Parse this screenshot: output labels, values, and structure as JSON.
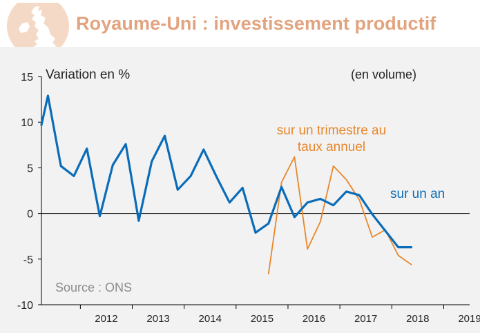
{
  "header": {
    "title": "Royaume-Uni : investissement productif",
    "badge_icon": "uk-map-icon",
    "title_color": "#e2a37f",
    "badge_color": "#f4d9c6"
  },
  "chart_data": {
    "type": "line",
    "ylabel": "Variation en %",
    "note": "(en volume)",
    "source": "Source : ONS",
    "ylim": [
      -10,
      15
    ],
    "yticks": [
      15,
      10,
      5,
      0,
      -5,
      -10
    ],
    "xlim": [
      2011.25,
      2019.5
    ],
    "xticks": [
      "2012",
      "2013",
      "2014",
      "2015",
      "2016",
      "2017",
      "2018",
      "2019"
    ],
    "grid": false,
    "series": [
      {
        "name": "sur un an",
        "color": "#0a6cb8",
        "x": [
          2011.25,
          2011.375,
          2011.625,
          2011.875,
          2012.125,
          2012.375,
          2012.625,
          2012.875,
          2013.125,
          2013.375,
          2013.625,
          2013.875,
          2014.125,
          2014.375,
          2014.625,
          2014.875,
          2015.125,
          2015.375,
          2015.625,
          2015.875,
          2016.125,
          2016.375,
          2016.625,
          2016.875,
          2017.125,
          2017.375,
          2017.625,
          2017.875,
          2018.125,
          2018.375
        ],
        "values": [
          9.7,
          12.9,
          5.2,
          4.1,
          7.1,
          -0.3,
          5.3,
          7.6,
          -0.8,
          5.7,
          8.5,
          2.6,
          4.1,
          7.0,
          4.0,
          1.2,
          2.8,
          -2.1,
          -1.1,
          2.9,
          -0.4,
          1.2,
          1.6,
          0.9,
          2.4,
          2.0,
          -0.1,
          -1.9,
          -3.7,
          -3.7
        ]
      },
      {
        "name": "sur un trimestre au taux annuel",
        "color": "#e8862b",
        "x": [
          2015.625,
          2015.875,
          2016.125,
          2016.375,
          2016.625,
          2016.875,
          2017.125,
          2017.375,
          2017.625,
          2017.875,
          2018.125,
          2018.375
        ],
        "values": [
          -6.6,
          3.4,
          6.2,
          -3.9,
          -0.9,
          5.2,
          3.7,
          1.5,
          -2.6,
          -1.8,
          -4.6,
          -5.6
        ]
      }
    ],
    "annotations": [
      {
        "series": 0,
        "text": "sur un an"
      },
      {
        "series": 1,
        "text_line1": "sur un trimestre au",
        "text_line2": "taux annuel"
      }
    ]
  }
}
